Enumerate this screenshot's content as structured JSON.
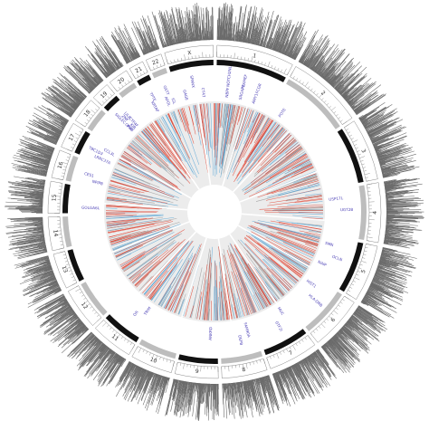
{
  "chart_data": {
    "type": "circular-genome-plot",
    "title": "",
    "chromosomes": [
      {
        "name": "1",
        "size": 248,
        "alt": false
      },
      {
        "name": "2",
        "size": 242,
        "alt": true
      },
      {
        "name": "3",
        "size": 198,
        "alt": false
      },
      {
        "name": "4",
        "size": 190,
        "alt": true
      },
      {
        "name": "5",
        "size": 181,
        "alt": false
      },
      {
        "name": "6",
        "size": 171,
        "alt": true
      },
      {
        "name": "7",
        "size": 159,
        "alt": false
      },
      {
        "name": "8",
        "size": 145,
        "alt": true
      },
      {
        "name": "9",
        "size": 138,
        "alt": false
      },
      {
        "name": "10",
        "size": 134,
        "alt": true
      },
      {
        "name": "11",
        "size": 135,
        "alt": false
      },
      {
        "name": "12",
        "size": 133,
        "alt": true
      },
      {
        "name": "13",
        "size": 114,
        "alt": false
      },
      {
        "name": "14",
        "size": 107,
        "alt": true
      },
      {
        "name": "15",
        "size": 102,
        "alt": false
      },
      {
        "name": "16",
        "size": 90,
        "alt": true
      },
      {
        "name": "17",
        "size": 83,
        "alt": false
      },
      {
        "name": "18",
        "size": 80,
        "alt": true
      },
      {
        "name": "19",
        "size": 59,
        "alt": false
      },
      {
        "name": "20",
        "size": 64,
        "alt": true
      },
      {
        "name": "21",
        "size": 47,
        "alt": false
      },
      {
        "name": "22",
        "size": 51,
        "alt": true
      },
      {
        "name": "X",
        "size": 156,
        "alt": false
      }
    ],
    "tracks": {
      "outer_histogram": {
        "color": "#6b6b6b",
        "min": 0,
        "max": 1
      },
      "ideogram": {
        "color_primary": "#111111",
        "color_alt": "#bdbdbd"
      },
      "inner_links": {
        "background": "#ececec",
        "colors": [
          "#e0412f",
          "#5aa7d6",
          "#9a9a9a"
        ]
      }
    },
    "gene_labels": [
      {
        "text": "HIST1",
        "chrom": "6",
        "color": "#4a3fb5"
      },
      {
        "text": "LRRC37A",
        "chrom": "17",
        "color": "#4a3fb5"
      },
      {
        "text": "NBPF",
        "chrom": "1",
        "color": "#4a3fb5"
      },
      {
        "text": "MUC",
        "chrom": "7",
        "color": "#4a3fb5"
      },
      {
        "text": "HLA-DRB",
        "chrom": "6",
        "color": "#4a3fb5"
      },
      {
        "text": "GOLGA6L",
        "chrom": "15",
        "color": "#4a3fb5"
      },
      {
        "text": "ANKRD",
        "chrom": "9",
        "color": "#4a3fb5"
      },
      {
        "text": "OR4F",
        "chrom": "19",
        "color": "#4a3fb5"
      },
      {
        "text": "TBC1D3",
        "chrom": "17",
        "color": "#4a3fb5"
      },
      {
        "text": "SMN",
        "chrom": "5",
        "color": "#4a3fb5"
      },
      {
        "text": "NPIPB",
        "chrom": "16",
        "color": "#4a3fb5"
      },
      {
        "text": "FAM90A",
        "chrom": "8",
        "color": "#4a3fb5"
      },
      {
        "text": "KRTAP",
        "chrom": "21",
        "color": "#4a3fb5"
      },
      {
        "text": "USP17L",
        "chrom": "4",
        "color": "#4a3fb5"
      },
      {
        "text": "DEFB",
        "chrom": "8",
        "color": "#4a3fb5"
      },
      {
        "text": "GAGE",
        "chrom": "X",
        "color": "#4a3fb5"
      },
      {
        "text": "SPANX",
        "chrom": "X",
        "color": "#4a3fb5"
      },
      {
        "text": "TRIM",
        "chrom": "11",
        "color": "#4a3fb5"
      },
      {
        "text": "ZNF",
        "chrom": "19",
        "color": "#4a3fb5"
      },
      {
        "text": "CT47",
        "chrom": "X",
        "color": "#4a3fb5"
      },
      {
        "text": "PRAMEF",
        "chrom": "1",
        "color": "#4a3fb5"
      },
      {
        "text": "UGT2B",
        "chrom": "4",
        "color": "#4a3fb5"
      },
      {
        "text": "AMY1",
        "chrom": "1",
        "color": "#4a3fb5"
      },
      {
        "text": "CCL3L",
        "chrom": "17",
        "color": "#4a3fb5"
      },
      {
        "text": "TPTE",
        "chrom": "21",
        "color": "#4a3fb5"
      },
      {
        "text": "POTE",
        "chrom": "2",
        "color": "#4a3fb5"
      },
      {
        "text": "NOTCH2NL",
        "chrom": "1",
        "color": "#4a3fb5"
      },
      {
        "text": "SRGAP2",
        "chrom": "1",
        "color": "#4a3fb5"
      },
      {
        "text": "FCGR",
        "chrom": "1",
        "color": "#4a3fb5"
      },
      {
        "text": "GTF2I",
        "chrom": "7",
        "color": "#4a3fb5"
      },
      {
        "text": "OCLN",
        "chrom": "5",
        "color": "#4a3fb5"
      },
      {
        "text": "NAIP",
        "chrom": "5",
        "color": "#4a3fb5"
      },
      {
        "text": "CYP4F",
        "chrom": "19",
        "color": "#4a3fb5"
      },
      {
        "text": "SIGLEC",
        "chrom": "19",
        "color": "#4a3fb5"
      },
      {
        "text": "KIR",
        "chrom": "19",
        "color": "#4a3fb5"
      },
      {
        "text": "LILR",
        "chrom": "19",
        "color": "#4a3fb5"
      },
      {
        "text": "PSG",
        "chrom": "19",
        "color": "#4a3fb5"
      },
      {
        "text": "OR",
        "chrom": "11",
        "color": "#4a3fb5"
      },
      {
        "text": "APOL",
        "chrom": "22",
        "color": "#4a3fb5"
      },
      {
        "text": "GSTT",
        "chrom": "22",
        "color": "#4a3fb5"
      },
      {
        "text": "IGL",
        "chrom": "22",
        "color": "#4a3fb5"
      },
      {
        "text": "CES1",
        "chrom": "16",
        "color": "#4a3fb5"
      }
    ]
  }
}
